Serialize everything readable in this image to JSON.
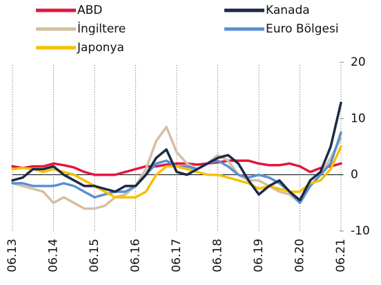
{
  "chart_data": {
    "type": "line",
    "categories": [
      "06.13",
      null,
      null,
      null,
      "06.14",
      null,
      null,
      null,
      "06.15",
      null,
      null,
      null,
      "06.16",
      null,
      null,
      null,
      "06.17",
      null,
      null,
      null,
      "06.18",
      null,
      null,
      null,
      "06.19",
      null,
      null,
      null,
      "06.20",
      null,
      null,
      null,
      "06.21"
    ],
    "series": [
      {
        "name": "ABD",
        "color": "#e2163d",
        "values": [
          1.5,
          1.2,
          1.5,
          1.5,
          2.0,
          1.7,
          1.3,
          0.5,
          0,
          0,
          0,
          0.5,
          1,
          1.5,
          1.5,
          1.8,
          2,
          2,
          1.8,
          2,
          2.2,
          2.5,
          2.5,
          2.5,
          2,
          1.7,
          1.7,
          2,
          1.5,
          0.5,
          1.2,
          1.5,
          2
        ]
      },
      {
        "name": "Kanada",
        "color": "#1b2a44",
        "values": [
          -1,
          -0.5,
          1,
          1,
          1.5,
          0,
          -1,
          -2,
          -2,
          -2.5,
          -3,
          -2,
          -2,
          0,
          3,
          4.5,
          0.5,
          0,
          1,
          2,
          3,
          3.5,
          2,
          -1,
          -3.5,
          -2,
          -1,
          -3,
          -4.5,
          -1,
          0.5,
          5,
          12.8
        ]
      },
      {
        "name": "İngiltere",
        "color": "#d4bfa3",
        "values": [
          -1.5,
          -2,
          -2.5,
          -3,
          -5,
          -4,
          -5,
          -6,
          -6,
          -5.5,
          -4,
          -3.5,
          -2,
          1,
          6,
          8.5,
          4,
          2,
          1,
          2,
          3.5,
          2.5,
          0,
          -1,
          -1,
          -2,
          -3,
          -3.5,
          -5,
          -2,
          0,
          3,
          6.5
        ]
      },
      {
        "name": "Euro Bölgesi",
        "color": "#5b8fd4",
        "values": [
          -1.5,
          -1.5,
          -2,
          -2,
          -2,
          -1.5,
          -2,
          -3,
          -4,
          -3.5,
          -3,
          -3,
          -2,
          0,
          2,
          2.5,
          1.5,
          1.5,
          1,
          2,
          2.5,
          1.5,
          0,
          -0.5,
          0,
          -0.5,
          -1.5,
          -3,
          -5,
          -2,
          0,
          2,
          7.5
        ]
      },
      {
        "name": "Japonya",
        "color": "#f6c000",
        "values": [
          1,
          1.2,
          1,
          0.5,
          1,
          0.5,
          0,
          -1,
          -2,
          -3,
          -4,
          -4,
          -4,
          -3,
          0,
          1.5,
          1.5,
          1,
          0.5,
          0,
          0,
          -0.5,
          -1,
          -1.5,
          -2.5,
          -2,
          -2.5,
          -3,
          -3,
          -1.5,
          -1,
          1,
          5
        ]
      }
    ],
    "ylim": [
      -10,
      20
    ],
    "yticks": [
      -10,
      0,
      10,
      20
    ],
    "grid": true
  }
}
